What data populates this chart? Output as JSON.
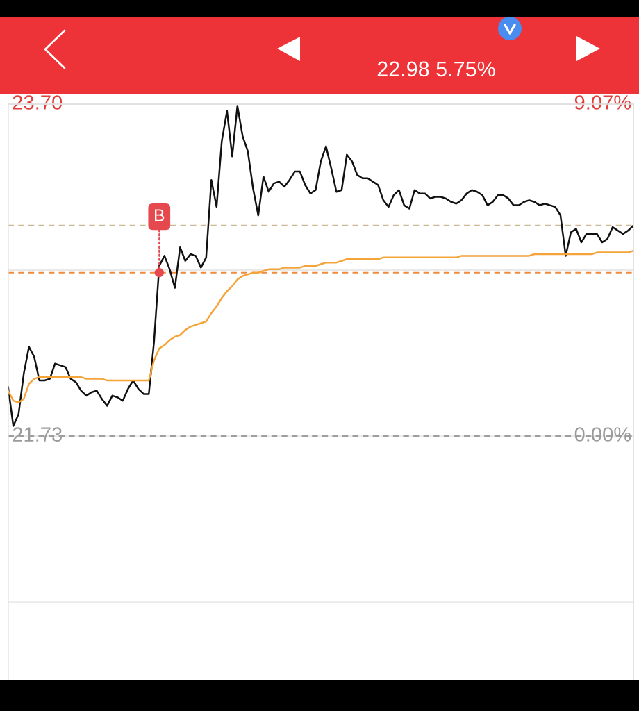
{
  "chart_data": {
    "type": "line",
    "subtitle": "22.98 5.75%",
    "categories": [
      null,
      null,
      null,
      null,
      null,
      null,
      null,
      null,
      null,
      null,
      null,
      null,
      null,
      null,
      null,
      null,
      null,
      null,
      null,
      null,
      null,
      null,
      null,
      null,
      null,
      null,
      null,
      null,
      null,
      null,
      null,
      null,
      null,
      null,
      null,
      null,
      null,
      null,
      null,
      null,
      null,
      null,
      null,
      null,
      null,
      null,
      null,
      null,
      null,
      null,
      null,
      null,
      null,
      null,
      null,
      null,
      null,
      null,
      null,
      null,
      null,
      null,
      null,
      null,
      null,
      null,
      null,
      null,
      null,
      null,
      null,
      null,
      null,
      null,
      null,
      null,
      null,
      null,
      null,
      null,
      null,
      null,
      null,
      null,
      null,
      null,
      null,
      null,
      null,
      null,
      null,
      null,
      null,
      null,
      null,
      null,
      null,
      null,
      null,
      null,
      null,
      null,
      null,
      null,
      null,
      null,
      null,
      null,
      null,
      null,
      null,
      null,
      null,
      null,
      null,
      null,
      null,
      null,
      null,
      null,
      null
    ],
    "series": [
      {
        "color": "#111111",
        "values": [
          22.02,
          21.79,
          21.86,
          22.1,
          22.26,
          22.2,
          22.06,
          22.06,
          22.07,
          22.16,
          22.15,
          22.14,
          22.07,
          22.05,
          22.0,
          21.97,
          21.99,
          22.0,
          21.95,
          21.91,
          21.97,
          21.96,
          21.94,
          22.01,
          22.06,
          22.01,
          21.98,
          21.98,
          22.29,
          22.74,
          22.8,
          22.72,
          22.61,
          22.85,
          22.77,
          22.81,
          22.8,
          22.73,
          22.79,
          23.25,
          23.09,
          23.48,
          23.66,
          23.39,
          23.69,
          23.51,
          23.42,
          23.2,
          23.04,
          23.27,
          23.18,
          23.23,
          23.24,
          23.21,
          23.25,
          23.3,
          23.3,
          23.22,
          23.17,
          23.19,
          23.36,
          23.45,
          23.32,
          23.18,
          23.19,
          23.4,
          23.36,
          23.28,
          23.26,
          23.26,
          23.24,
          23.22,
          23.13,
          23.09,
          23.16,
          23.19,
          23.1,
          23.08,
          23.19,
          23.17,
          23.17,
          23.14,
          23.15,
          23.15,
          23.14,
          23.12,
          23.11,
          23.13,
          23.17,
          23.19,
          23.18,
          23.16,
          23.1,
          23.12,
          23.16,
          23.16,
          23.14,
          23.1,
          23.1,
          23.12,
          23.13,
          23.12,
          23.1,
          23.11,
          23.1,
          23.09,
          23.04,
          22.8,
          22.94,
          22.96,
          22.88,
          22.93,
          22.93,
          22.93,
          22.88,
          22.9,
          22.97,
          22.95,
          22.93,
          22.95,
          22.98
        ]
      },
      {
        "color": "#f5a43a",
        "values": [
          22.0,
          21.94,
          21.93,
          21.95,
          22.04,
          22.07,
          22.08,
          22.08,
          22.08,
          22.08,
          22.08,
          22.08,
          22.08,
          22.08,
          22.08,
          22.07,
          22.07,
          22.07,
          22.07,
          22.06,
          22.06,
          22.06,
          22.06,
          22.06,
          22.06,
          22.06,
          22.06,
          22.06,
          22.18,
          22.25,
          22.27,
          22.3,
          22.32,
          22.33,
          22.36,
          22.38,
          22.39,
          22.4,
          22.41,
          22.46,
          22.5,
          22.55,
          22.59,
          22.62,
          22.66,
          22.68,
          22.69,
          22.7,
          22.7,
          22.71,
          22.72,
          22.72,
          22.72,
          22.73,
          22.73,
          22.73,
          22.73,
          22.74,
          22.74,
          22.74,
          22.75,
          22.76,
          22.76,
          22.76,
          22.77,
          22.78,
          22.78,
          22.78,
          22.78,
          22.78,
          22.78,
          22.78,
          22.79,
          22.79,
          22.79,
          22.79,
          22.79,
          22.79,
          22.79,
          22.79,
          22.79,
          22.79,
          22.79,
          22.79,
          22.79,
          22.79,
          22.79,
          22.8,
          22.8,
          22.8,
          22.8,
          22.8,
          22.8,
          22.8,
          22.8,
          22.8,
          22.8,
          22.8,
          22.8,
          22.8,
          22.8,
          22.81,
          22.81,
          22.81,
          22.81,
          22.81,
          22.81,
          22.81,
          22.81,
          22.81,
          22.81,
          22.81,
          22.81,
          22.82,
          22.82,
          22.82,
          22.82,
          22.82,
          22.82,
          22.82,
          22.83
        ]
      },
      {
        "name": "B",
        "type": "scatter",
        "marker": "circle",
        "color": "#e5484d",
        "values": [
          null,
          null,
          null,
          null,
          null,
          null,
          null,
          null,
          null,
          null,
          null,
          null,
          null,
          null,
          null,
          null,
          null,
          null,
          null,
          null,
          null,
          null,
          null,
          null,
          null,
          null,
          null,
          null,
          null,
          22.7,
          null,
          null,
          null,
          null,
          null,
          null,
          null,
          null,
          null,
          null,
          null,
          null,
          null,
          null,
          null,
          null,
          null,
          null,
          null,
          null,
          null,
          null,
          null,
          null,
          null,
          null,
          null,
          null,
          null,
          null,
          null,
          null,
          null,
          null,
          null,
          null,
          null,
          null,
          null,
          null,
          null,
          null,
          null,
          null,
          null,
          null,
          null,
          null,
          null,
          null,
          null,
          null,
          null,
          null,
          null,
          null,
          null,
          null,
          null,
          null,
          null,
          null,
          null,
          null,
          null,
          null,
          null,
          null,
          null,
          null,
          null,
          null,
          null,
          null,
          null,
          null,
          null,
          null,
          null,
          null,
          null,
          null,
          null,
          null,
          null,
          null,
          null,
          null,
          null,
          null,
          null
        ]
      }
    ],
    "ylim": [
      20.28,
      23.7
    ],
    "yticks": [
      {
        "value": 23.7,
        "label": "23.70"
      },
      {
        "value": 22.715,
        "label": null
      },
      {
        "value": 21.73,
        "label": "21.73"
      },
      {
        "value": 20.745,
        "label": null
      }
    ],
    "y2lim": [
      -6.68,
      9.07
    ],
    "y2ticks": [
      {
        "value": 9.07,
        "label": "9.07%"
      },
      {
        "value": 0,
        "label": "0.00%"
      }
    ],
    "ref_lines": [
      {
        "axis": "y",
        "value": 22.98,
        "color": "#cbb994",
        "line_style": "dashed"
      },
      {
        "axis": "y",
        "value": 22.7,
        "color": "#f08a3c",
        "line_style": "dashed"
      },
      {
        "axis": "y",
        "value": 21.73,
        "color": "#9e9e9e",
        "line_style": "dashed"
      }
    ],
    "grid": true
  }
}
